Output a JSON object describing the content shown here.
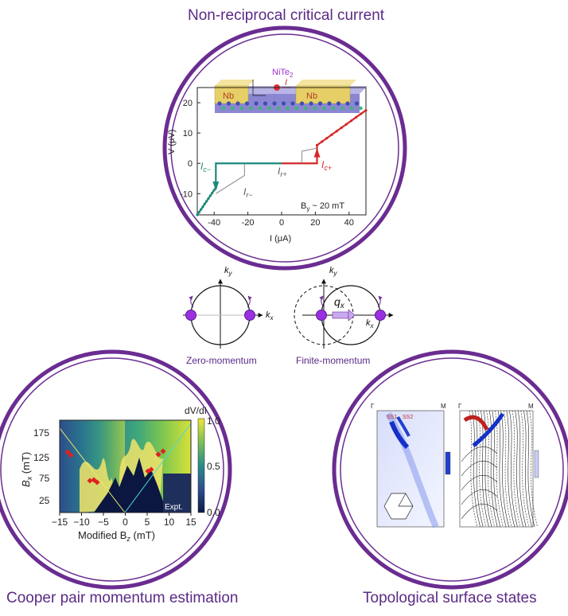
{
  "titles": {
    "top": "Non-reciprocal critical current",
    "bottom_left": "Cooper pair momentum estimation",
    "bottom_right": "Topological surface states"
  },
  "middle": {
    "left_caption": "Zero-momentum",
    "right_caption": "Finite-momentum",
    "ky_label": "k",
    "ky_sub": "y",
    "kx_label": "k",
    "kx_sub": "x",
    "qx_label": "q",
    "qx_sub": "x"
  },
  "top_plot": {
    "material": "NiTe",
    "material_sub": "2",
    "nb_label": "Nb",
    "current_symbol": "I",
    "axis_x_label": "I (μA)",
    "axis_y_label": "V (μV)",
    "field_label": "B",
    "field_sub": "y",
    "field_value": " ~ 20 mT",
    "labels": {
      "ic_minus": "I",
      "ic_minus_sub": "c−",
      "ic_plus": "I",
      "ic_plus_sub": "c+",
      "ir_plus": "I",
      "ir_plus_sub": "r+",
      "ir_minus": "I",
      "ir_minus_sub": "r−"
    },
    "colors": {
      "positive": "#d62728",
      "negative": "#1a8a7a",
      "retrap": "#888888"
    }
  },
  "chart_data": {
    "type": "line",
    "xlim": [
      -50,
      50
    ],
    "ylim": [
      -17,
      25
    ],
    "xticks": [
      -40,
      -20,
      0,
      20,
      40
    ],
    "yticks": [
      -10,
      0,
      10,
      20
    ],
    "series": [
      {
        "color": "negative",
        "points": [
          [
            0,
            0
          ],
          [
            -39,
            0
          ],
          [
            -39,
            -8
          ],
          [
            -50,
            -17
          ]
        ]
      },
      {
        "color": "positive",
        "points": [
          [
            0,
            0
          ],
          [
            21,
            0
          ],
          [
            21,
            6
          ],
          [
            50,
            17.5
          ]
        ]
      },
      {
        "color": "retrap",
        "points": [
          [
            -39,
            -10
          ],
          [
            -22,
            -4
          ],
          [
            -22,
            0
          ]
        ]
      },
      {
        "color": "retrap",
        "points": [
          [
            21,
            5
          ],
          [
            12,
            4
          ],
          [
            12,
            0
          ]
        ]
      }
    ]
  },
  "heatmap": {
    "colorbar_title": "dV/dI",
    "colorbar_ticks": [
      "1.0",
      "0.5",
      "0.0"
    ],
    "ylabel_main": "B",
    "ylabel_sub": "x",
    "ylabel_unit": " (mT)",
    "xlabel_main": "Modified B",
    "xlabel_sub": "z",
    "xlabel_unit": " (mT)",
    "xticks": [
      "−15",
      "−10",
      "−5",
      "0",
      "5",
      "10",
      "15"
    ],
    "yticks": [
      "175",
      "125",
      "75",
      "25"
    ],
    "badge": "Expt."
  },
  "arpes": {
    "corner_gamma": "Γ",
    "corner_m": "M",
    "ss_labels": [
      "SS1",
      "SS2"
    ]
  }
}
